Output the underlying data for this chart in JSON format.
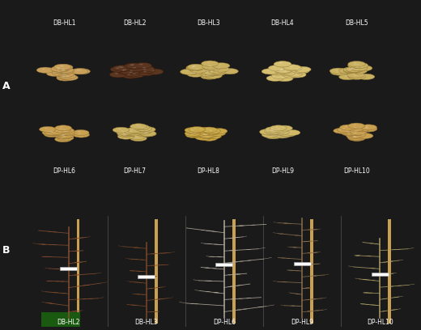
{
  "fig_width": 5.2,
  "fig_height": 4.08,
  "dpi": 100,
  "bg_color": "#1a1a1a",
  "panel_A_label": "A",
  "panel_B_label": "B",
  "label_color": "#ffffff",
  "label_fontsize": 9,
  "label_fontweight": "bold",
  "panel_A_row1_labels": [
    "DB-HL1",
    "DB-HL2",
    "DB-HL3",
    "DB-HL4",
    "DB-HL5"
  ],
  "panel_A_row2_labels": [
    "DP-HL6",
    "DP-HL7",
    "DP-HL8",
    "DP-HL9",
    "DP-HL10"
  ],
  "panel_B_labels": [
    "DB-HL2",
    "DB-HL3",
    "DP-HL6",
    "DP-HL9",
    "DP-HL10"
  ],
  "seed_text_fontsize": 5.5,
  "plant_text_fontsize": 5.5,
  "panel_A_bg": "#050505",
  "panel_B_bg": "#050505",
  "seed_colors_row1": [
    "#c8a05a",
    "#5a3520",
    "#c8b060",
    "#d4c070",
    "#c8b060"
  ],
  "seed_colors_row2": [
    "#c8a050",
    "#c8b060",
    "#c8a848",
    "#d0b868",
    "#c8a050"
  ],
  "seed_edge_colors_row1": [
    "#8a6a30",
    "#3a1a08",
    "#8a7030",
    "#9a8040",
    "#8a7030"
  ],
  "seed_edge_colors_row2": [
    "#8a6a30",
    "#8a7030",
    "#8a6820",
    "#908040",
    "#8a6a30"
  ],
  "plant_body_colors": [
    "#8B5030",
    "#7a4828",
    "#b8b0a0",
    "#8B7050",
    "#b0a068"
  ],
  "pole_color": "#c8a050",
  "green_base_color": "#1a5a10",
  "divider_color": "#888888"
}
